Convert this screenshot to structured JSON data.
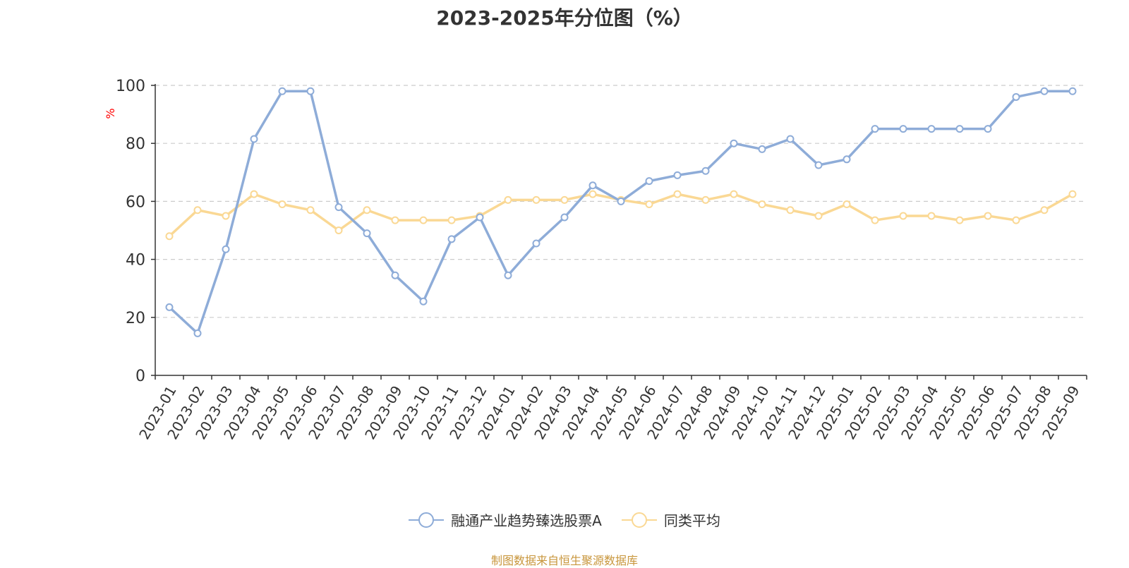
{
  "chart_data": {
    "type": "line",
    "title": "2023-2025年分位图（%）",
    "ylabel": "%",
    "xlabel": "",
    "ylim": [
      0,
      100
    ],
    "y_ticks": [
      0,
      20,
      40,
      60,
      80,
      100
    ],
    "grid": "horizontal dashed",
    "legend_position": "bottom-center",
    "categories": [
      "2023-01",
      "2023-02",
      "2023-03",
      "2023-04",
      "2023-05",
      "2023-06",
      "2023-07",
      "2023-08",
      "2023-09",
      "2023-10",
      "2023-11",
      "2023-12",
      "2024-01",
      "2024-02",
      "2024-03",
      "2024-04",
      "2024-05",
      "2024-06",
      "2024-07",
      "2024-08",
      "2024-09",
      "2024-10",
      "2024-11",
      "2024-12",
      "2025-01",
      "2025-02",
      "2025-03",
      "2025-04",
      "2025-05",
      "2025-06",
      "2025-07",
      "2025-08",
      "2025-09"
    ],
    "series": [
      {
        "name": "融通产业趋势臻选股票A",
        "color": "#8eacd8",
        "values": [
          23.5,
          14.5,
          43.5,
          81.5,
          98,
          98,
          58,
          49,
          34.5,
          25.5,
          47,
          54.5,
          34.5,
          45.5,
          54.5,
          65.5,
          60,
          67,
          69,
          70.5,
          80,
          78,
          81.5,
          72.5,
          74.5,
          85,
          85,
          85,
          85,
          85,
          96,
          98,
          98
        ]
      },
      {
        "name": "同类平均",
        "color": "#fad894",
        "values": [
          48,
          57,
          55,
          62.5,
          59,
          57,
          50,
          57,
          53.5,
          53.5,
          53.5,
          55,
          60.5,
          60.5,
          60.5,
          62.5,
          60.5,
          59,
          62.5,
          60.5,
          62.5,
          59,
          57,
          55,
          59,
          53.5,
          55,
          55,
          53.5,
          55,
          53.5,
          57,
          62.5
        ]
      }
    ]
  },
  "colors": {
    "ylabel": "#ff0000",
    "axis": "#333333",
    "grid": "#cccccc",
    "source": "#c8963c"
  },
  "source_note": "制图数据来自恒生聚源数据库"
}
